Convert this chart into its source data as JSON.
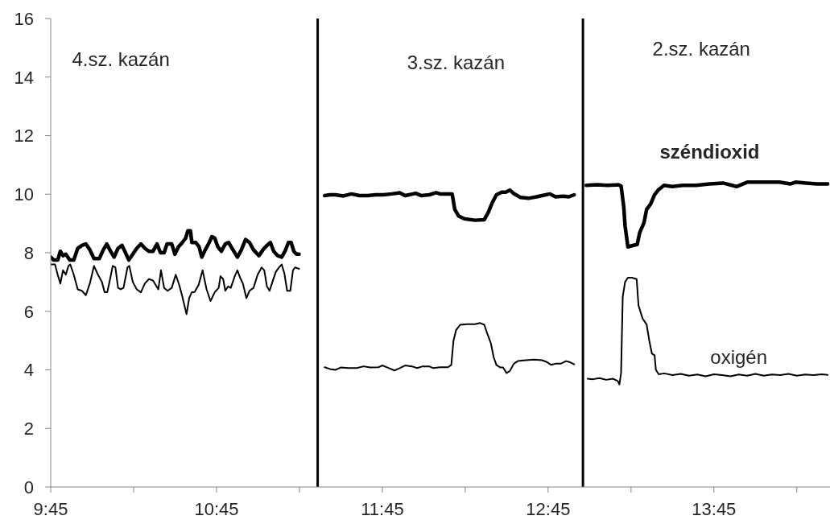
{
  "chart_data": {
    "type": "line",
    "annotations": [
      "4.sz. kazán",
      "3.sz. kazán",
      "2.sz. kazán"
    ],
    "series": [
      {
        "name": "széndioxid",
        "color": "#000000",
        "x": [
          9.75,
          9.768,
          9.792,
          9.808,
          9.824,
          9.841,
          9.865,
          9.889,
          9.913,
          9.938,
          9.962,
          9.986,
          10.011,
          10.043,
          10.067,
          10.088,
          10.111,
          10.132,
          10.156,
          10.18,
          10.201,
          10.221,
          10.245,
          10.269,
          10.294,
          10.318,
          10.342,
          10.367,
          10.391,
          10.412,
          10.434,
          10.451,
          10.48,
          10.499,
          10.52,
          10.544,
          10.564,
          10.577,
          10.593,
          10.601,
          10.625,
          10.645,
          10.661,
          10.682,
          10.706,
          10.722,
          10.739,
          10.758,
          10.779,
          10.803,
          10.823,
          10.844,
          10.876,
          10.9,
          10.925,
          10.949,
          10.973,
          11.006,
          11.03,
          11.054,
          11.075,
          11.095,
          11.119,
          11.143,
          11.163,
          11.184,
          11.2,
          11.216,
          11.232,
          11.248,
          11.36,
          11.402,
          11.434,
          11.467,
          11.515,
          11.564,
          11.612,
          11.661,
          11.71,
          11.758,
          11.807,
          11.855,
          11.887,
          11.952,
          11.985,
          12.033,
          12.074,
          12.098,
          12.171,
          12.187,
          12.211,
          12.244,
          12.308,
          12.365,
          12.389,
          12.413,
          12.438,
          12.47,
          12.494,
          12.519,
          12.543,
          12.583,
          12.632,
          12.68,
          12.713,
          12.761,
          12.794,
          12.842,
          12.875,
          12.907,
          12.96,
          12.98,
          13.045,
          13.109,
          13.174,
          13.19,
          13.206,
          13.214,
          13.231,
          13.255,
          13.287,
          13.303,
          13.328,
          13.344,
          13.368,
          13.392,
          13.417,
          13.449,
          13.498,
          13.562,
          13.643,
          13.724,
          13.805,
          13.886,
          13.951,
          14.048,
          14.145,
          14.21,
          14.242,
          14.307,
          14.371,
          14.436
        ],
        "values": [
          7.85,
          7.75,
          7.75,
          8.05,
          7.9,
          7.95,
          7.75,
          7.75,
          8.15,
          8.25,
          8.3,
          8.1,
          7.8,
          7.8,
          8.1,
          8.3,
          8.05,
          7.85,
          8.15,
          8.25,
          8.0,
          7.75,
          7.95,
          8.15,
          8.3,
          8.15,
          8.05,
          8.05,
          8.3,
          8.0,
          8.0,
          8.3,
          8.3,
          7.95,
          8.2,
          8.35,
          8.5,
          8.75,
          8.75,
          8.35,
          8.35,
          8.2,
          7.85,
          8.1,
          8.35,
          8.55,
          8.5,
          8.2,
          8.05,
          8.3,
          8.35,
          8.15,
          7.85,
          8.1,
          8.45,
          8.35,
          8.1,
          7.9,
          8.1,
          8.25,
          8.35,
          8.05,
          7.9,
          7.85,
          8.05,
          8.35,
          8.35,
          8.05,
          7.95,
          7.95,
          null,
          9.95,
          9.98,
          9.98,
          9.94,
          10.01,
          9.95,
          9.95,
          9.98,
          9.98,
          10.01,
          10.05,
          9.95,
          10.03,
          9.95,
          9.98,
          10.05,
          10.01,
          10.01,
          9.48,
          9.25,
          9.16,
          9.11,
          9.13,
          9.38,
          9.71,
          9.98,
          10.07,
          10.07,
          10.14,
          10.02,
          9.89,
          9.86,
          9.91,
          9.95,
          10.01,
          9.91,
          9.93,
          9.91,
          9.98,
          null,
          10.3,
          10.32,
          10.3,
          10.32,
          10.28,
          9.57,
          8.93,
          8.2,
          8.24,
          8.28,
          8.7,
          9.02,
          9.48,
          9.66,
          9.98,
          10.16,
          10.3,
          10.26,
          10.3,
          10.3,
          10.35,
          10.38,
          10.26,
          10.41,
          10.41,
          10.41,
          10.35,
          10.41,
          10.38,
          10.35,
          10.35
        ]
      },
      {
        "name": "oxigén",
        "color": "#000000",
        "x": [
          9.752,
          9.776,
          9.792,
          9.808,
          9.824,
          9.841,
          9.857,
          9.868,
          9.889,
          9.913,
          9.938,
          9.962,
          9.986,
          10.011,
          10.035,
          10.059,
          10.075,
          10.091,
          10.108,
          10.124,
          10.14,
          10.156,
          10.172,
          10.189,
          10.213,
          10.224,
          10.245,
          10.269,
          10.294,
          10.318,
          10.342,
          10.367,
          10.383,
          10.399,
          10.415,
          10.434,
          10.455,
          10.48,
          10.504,
          10.525,
          10.544,
          10.569,
          10.585,
          10.601,
          10.617,
          10.642,
          10.666,
          10.69,
          10.714,
          10.739,
          10.763,
          10.774,
          10.79,
          10.803,
          10.82,
          10.836,
          10.86,
          10.876,
          10.892,
          10.909,
          10.93,
          10.949,
          10.973,
          10.998,
          11.022,
          11.038,
          11.054,
          11.07,
          11.087,
          11.108,
          11.127,
          11.143,
          11.159,
          11.176,
          11.195,
          11.211,
          11.224,
          11.248,
          11.36,
          11.402,
          11.434,
          11.467,
          11.499,
          11.548,
          11.596,
          11.637,
          11.677,
          11.726,
          11.75,
          11.79,
          11.823,
          11.855,
          11.887,
          11.928,
          11.96,
          11.993,
          12.033,
          12.057,
          12.098,
          12.146,
          12.166,
          12.179,
          12.195,
          12.219,
          12.26,
          12.308,
          12.341,
          12.365,
          12.381,
          12.405,
          12.421,
          12.438,
          12.462,
          12.478,
          12.499,
          12.519,
          12.543,
          12.567,
          12.616,
          12.664,
          12.713,
          12.745,
          12.769,
          12.794,
          12.826,
          12.858,
          12.883,
          12.907,
          12.96,
          12.988,
          13.02,
          13.06,
          13.1,
          13.14,
          13.17,
          13.18,
          13.19,
          13.2,
          13.214,
          13.231,
          13.255,
          13.284,
          13.295,
          13.32,
          13.344,
          13.36,
          13.376,
          13.392,
          13.4,
          13.417,
          13.45,
          13.5,
          13.55,
          13.6,
          13.65,
          13.7,
          13.75,
          13.8,
          13.85,
          13.9,
          13.95,
          14.0,
          14.05,
          14.1,
          14.15,
          14.2,
          14.25,
          14.3,
          14.35,
          14.4,
          14.436
        ],
        "values": [
          7.6,
          7.6,
          7.25,
          6.95,
          7.4,
          7.25,
          7.55,
          7.6,
          7.25,
          6.75,
          6.7,
          6.55,
          6.95,
          7.55,
          7.25,
          7.0,
          6.65,
          6.65,
          7.1,
          7.55,
          7.5,
          6.8,
          6.75,
          6.8,
          7.5,
          7.55,
          7.0,
          6.75,
          6.65,
          6.95,
          7.1,
          7.05,
          6.9,
          6.75,
          7.4,
          6.8,
          6.7,
          6.8,
          7.25,
          6.9,
          6.5,
          5.9,
          6.45,
          6.65,
          6.65,
          6.9,
          7.4,
          6.75,
          6.35,
          6.65,
          6.8,
          7.2,
          7.1,
          6.7,
          6.85,
          6.8,
          7.2,
          7.4,
          7.15,
          6.95,
          6.45,
          6.7,
          6.8,
          7.25,
          7.5,
          7.4,
          6.85,
          6.7,
          7.0,
          7.35,
          7.5,
          7.6,
          7.3,
          6.7,
          6.7,
          7.4,
          7.5,
          7.45,
          null,
          4.09,
          4.03,
          4.0,
          4.08,
          4.06,
          4.06,
          4.12,
          4.08,
          4.09,
          4.15,
          4.06,
          3.98,
          4.06,
          4.15,
          4.12,
          4.06,
          4.12,
          4.12,
          4.06,
          4.09,
          4.09,
          4.17,
          4.99,
          5.36,
          5.54,
          5.56,
          5.56,
          5.6,
          5.54,
          5.27,
          4.9,
          4.44,
          4.17,
          4.08,
          4.08,
          3.89,
          3.96,
          4.21,
          4.3,
          4.33,
          4.35,
          4.33,
          4.26,
          4.17,
          4.21,
          4.21,
          4.3,
          4.26,
          4.19,
          null,
          3.7,
          3.68,
          3.72,
          3.66,
          3.7,
          3.62,
          3.5,
          3.9,
          6.5,
          7.0,
          7.15,
          7.15,
          7.1,
          6.2,
          5.75,
          5.55,
          5.0,
          4.55,
          4.5,
          4.0,
          3.85,
          3.88,
          3.82,
          3.86,
          3.8,
          3.84,
          3.78,
          3.85,
          3.82,
          3.78,
          3.84,
          3.8,
          3.86,
          3.8,
          3.84,
          3.82,
          3.86,
          3.8,
          3.84,
          3.82,
          3.85,
          3.83
        ]
      }
    ],
    "xlim": [
      9.75,
      14.45
    ],
    "xticks": [
      {
        "value": 9.75,
        "label": "9:45"
      },
      {
        "value": 10.25,
        "label": null
      },
      {
        "value": 10.75,
        "label": "10:45"
      },
      {
        "value": 11.25,
        "label": null
      },
      {
        "value": 11.75,
        "label": "11:45"
      },
      {
        "value": 12.25,
        "label": null
      },
      {
        "value": 12.75,
        "label": "12:45"
      },
      {
        "value": 13.25,
        "label": null
      },
      {
        "value": 13.75,
        "label": "13:45"
      },
      {
        "value": 14.25,
        "label": null
      }
    ],
    "ylim": [
      0,
      16
    ],
    "yticks": [
      0,
      2,
      4,
      6,
      8,
      10,
      12,
      14,
      16
    ],
    "ref_lines": [
      {
        "axis": "x",
        "value": 11.36,
        "color": "#000000"
      },
      {
        "axis": "x",
        "value": 12.96,
        "color": "#000000"
      }
    ],
    "marker": "none",
    "line_style": "solid"
  }
}
